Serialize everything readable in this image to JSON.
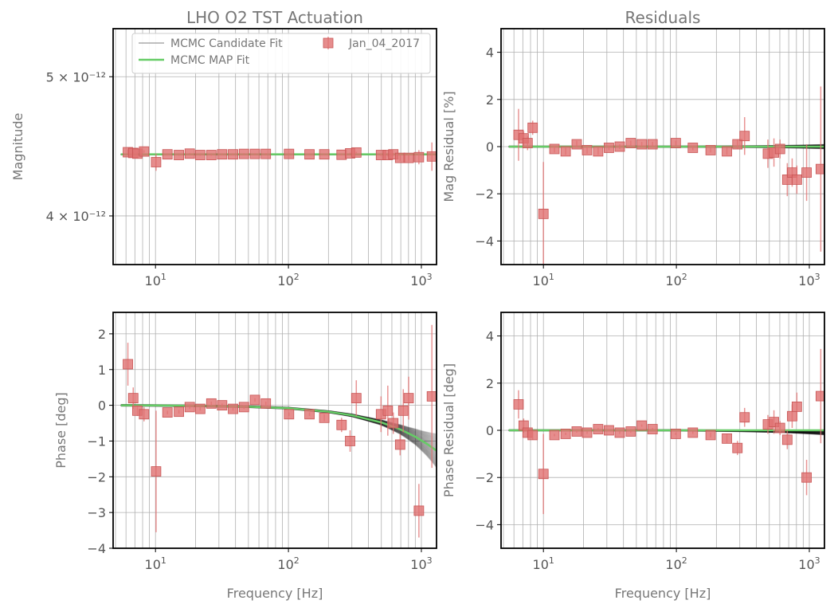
{
  "colors": {
    "data": "#e07070",
    "data_edge": "#c85555",
    "map_fit": "#66cc66",
    "candidate": "#000000",
    "grid": "#b0b0b0",
    "text": "#777777"
  },
  "chart_data": [
    {
      "id": "mag",
      "type": "scatter",
      "title": "LHO O2 TST Actuation",
      "xlabel": "",
      "ylabel": "Magnitude",
      "xscale": "log",
      "yscale": "log",
      "xlim": [
        4.8,
        1300
      ],
      "ylim": [
        3.7e-12,
        5.4e-12
      ],
      "yticks": [
        {
          "value": 4e-12,
          "label": "4 × 10⁻¹²"
        },
        {
          "value": 5e-12,
          "label": "5 × 10⁻¹²"
        }
      ],
      "grid": true,
      "legend": {
        "position": "top",
        "entries": [
          {
            "label": "MCMC Candidate Fit",
            "kind": "candidate"
          },
          {
            "label": "MCMC MAP Fit",
            "kind": "map"
          },
          {
            "label": "Jan_04_2017",
            "kind": "data"
          }
        ]
      },
      "x": [
        6.2,
        6.8,
        7.3,
        8.2,
        10.1,
        12.3,
        15,
        18.1,
        21.7,
        26.3,
        31.7,
        38.3,
        46.3,
        56,
        67.6,
        101,
        144,
        186,
        251,
        291,
        324,
        497,
        559,
        615,
        692,
        802,
        958,
        1200
      ],
      "y": [
        4.43e-12,
        4.425e-12,
        4.42e-12,
        4.435e-12,
        4.36e-12,
        4.415e-12,
        4.41e-12,
        4.42e-12,
        4.41e-12,
        4.41e-12,
        4.415e-12,
        4.415e-12,
        4.418e-12,
        4.418e-12,
        4.418e-12,
        4.418e-12,
        4.415e-12,
        4.415e-12,
        4.412e-12,
        4.422e-12,
        4.428e-12,
        4.41e-12,
        4.41e-12,
        4.415e-12,
        4.39e-12,
        4.39e-12,
        4.395e-12,
        4.4e-12
      ],
      "yerr": [
        2e-14,
        1e-14,
        1e-14,
        1e-14,
        6e-14,
        5e-15,
        5e-15,
        5e-15,
        5e-15,
        5e-15,
        5e-15,
        5e-15,
        5e-15,
        5e-15,
        5e-15,
        5e-15,
        5e-15,
        5e-15,
        5e-15,
        5e-15,
        5e-15,
        1e-14,
        1e-14,
        1e-14,
        2e-14,
        2e-14,
        5e-14,
        1e-13
      ],
      "map_fit": {
        "x": [
          5.5,
          1300
        ],
        "y": [
          4.415e-12,
          4.415e-12
        ]
      },
      "candidates": {
        "x": [
          5.5,
          1300
        ],
        "y": [
          4.415e-12,
          4.415e-12
        ]
      }
    },
    {
      "id": "mag_resid",
      "type": "scatter",
      "title": "Residuals",
      "xlabel": "",
      "ylabel": "Mag Residual [%]",
      "xscale": "log",
      "yscale": "linear",
      "xlim": [
        4.8,
        1300
      ],
      "ylim": [
        -5,
        5
      ],
      "yticks": [
        {
          "value": -4,
          "label": "−4"
        },
        {
          "value": -2,
          "label": "−2"
        },
        {
          "value": 0,
          "label": "0"
        },
        {
          "value": 2,
          "label": "2"
        },
        {
          "value": 4,
          "label": "4"
        }
      ],
      "grid": true,
      "x": [
        6.5,
        7.1,
        7.6,
        8.3,
        10.0,
        12.1,
        14.7,
        17.8,
        21.3,
        25.8,
        31.1,
        37.5,
        45.4,
        54.9,
        66.2,
        99,
        133,
        181,
        240,
        288,
        326,
        488,
        542,
        602,
        683,
        743,
        806,
        954,
        1220
      ],
      "y": [
        0.5,
        0.35,
        0.15,
        0.8,
        -2.85,
        -0.1,
        -0.2,
        0.1,
        -0.15,
        -0.2,
        -0.05,
        0.0,
        0.15,
        0.1,
        0.1,
        0.15,
        -0.05,
        -0.15,
        -0.2,
        0.1,
        0.45,
        -0.3,
        -0.25,
        -0.1,
        -1.4,
        -1.1,
        -1.4,
        -1.1,
        -0.95
      ],
      "yerr": [
        1.1,
        0.3,
        0.3,
        0.3,
        2.2,
        0.15,
        0.15,
        0.15,
        0.15,
        0.15,
        0.1,
        0.1,
        0.1,
        0.1,
        0.1,
        0.1,
        0.1,
        0.1,
        0.15,
        0.2,
        0.8,
        0.6,
        0.6,
        0.4,
        0.7,
        0.6,
        0.6,
        1.2,
        3.5
      ],
      "map_fit": {
        "x": [
          5.5,
          1300
        ],
        "y": [
          0,
          0
        ]
      },
      "candidates": {
        "x": [
          5.5,
          1300
        ],
        "y": [
          0,
          0
        ]
      }
    },
    {
      "id": "phase",
      "type": "scatter",
      "title": "",
      "xlabel": "Frequency [Hz]",
      "ylabel": "Phase [deg]",
      "xscale": "log",
      "yscale": "linear",
      "xlim": [
        4.8,
        1300
      ],
      "ylim": [
        -4,
        2.6
      ],
      "yticks": [
        {
          "value": -4,
          "label": "−4"
        },
        {
          "value": -3,
          "label": "−3"
        },
        {
          "value": -2,
          "label": "−2"
        },
        {
          "value": -1,
          "label": "−1"
        },
        {
          "value": 0,
          "label": "0"
        },
        {
          "value": 1,
          "label": "1"
        },
        {
          "value": 2,
          "label": "2"
        }
      ],
      "grid": true,
      "x": [
        6.2,
        6.8,
        7.3,
        8.2,
        10.1,
        12.3,
        15,
        18.1,
        21.7,
        26.3,
        31.7,
        38.3,
        46.3,
        56,
        67.6,
        101,
        144,
        186,
        251,
        291,
        324,
        497,
        559,
        615,
        692,
        731,
        802,
        958,
        1200
      ],
      "y": [
        1.15,
        0.2,
        -0.15,
        -0.25,
        -1.85,
        -0.2,
        -0.18,
        -0.05,
        -0.1,
        0.05,
        0.0,
        -0.1,
        -0.05,
        0.15,
        0.05,
        -0.25,
        -0.25,
        -0.35,
        -0.55,
        -1.0,
        0.2,
        -0.25,
        -0.15,
        -0.5,
        -1.1,
        -0.15,
        0.2,
        -2.95,
        0.25
      ],
      "yerr": [
        0.6,
        0.3,
        0.15,
        0.2,
        1.7,
        0.05,
        0.05,
        0.05,
        0.05,
        0.05,
        0.05,
        0.05,
        0.05,
        0.05,
        0.05,
        0.05,
        0.05,
        0.1,
        0.2,
        0.3,
        0.5,
        0.5,
        0.7,
        0.3,
        0.3,
        0.6,
        0.6,
        0.75,
        2.0
      ],
      "map_fit": {
        "x": [
          5.5,
          10,
          20,
          50,
          100,
          200,
          300,
          500,
          700,
          900,
          1100,
          1300
        ],
        "y": [
          0,
          -0.004,
          -0.015,
          -0.04,
          -0.08,
          -0.18,
          -0.28,
          -0.48,
          -0.68,
          -0.88,
          -1.08,
          -1.27
        ]
      },
      "candidates": {
        "x": [
          5.5,
          10,
          20,
          50,
          100,
          200,
          300,
          500,
          700,
          900,
          1100,
          1300
        ],
        "y": [
          0,
          -0.004,
          -0.015,
          -0.04,
          -0.08,
          -0.18,
          -0.28,
          -0.48,
          -0.68,
          -0.88,
          -1.08,
          -1.27
        ]
      }
    },
    {
      "id": "phase_resid",
      "type": "scatter",
      "title": "",
      "xlabel": "Frequency [Hz]",
      "ylabel": "Phase Residual [deg]",
      "xscale": "log",
      "yscale": "linear",
      "xlim": [
        4.8,
        1300
      ],
      "ylim": [
        -5,
        5
      ],
      "yticks": [
        {
          "value": -4,
          "label": "−4"
        },
        {
          "value": -2,
          "label": "−2"
        },
        {
          "value": 0,
          "label": "0"
        },
        {
          "value": 2,
          "label": "2"
        },
        {
          "value": 4,
          "label": "4"
        }
      ],
      "grid": true,
      "x": [
        6.5,
        7.1,
        7.6,
        8.3,
        10.0,
        12.1,
        14.7,
        17.8,
        21.3,
        25.8,
        31.1,
        37.5,
        45.4,
        54.9,
        66.2,
        99,
        133,
        181,
        240,
        288,
        326,
        488,
        542,
        602,
        683,
        743,
        806,
        954,
        1220
      ],
      "y": [
        1.1,
        0.2,
        -0.1,
        -0.2,
        -1.85,
        -0.2,
        -0.15,
        -0.05,
        -0.1,
        0.05,
        0.0,
        -0.1,
        -0.05,
        0.2,
        0.05,
        -0.15,
        -0.1,
        -0.2,
        -0.35,
        -0.75,
        0.55,
        0.25,
        0.35,
        0.1,
        -0.4,
        0.6,
        1.0,
        -2.0,
        1.45
      ],
      "yerr": [
        0.6,
        0.3,
        0.2,
        0.2,
        1.7,
        0.05,
        0.05,
        0.05,
        0.05,
        0.05,
        0.05,
        0.05,
        0.05,
        0.05,
        0.05,
        0.05,
        0.05,
        0.1,
        0.2,
        0.3,
        0.4,
        0.4,
        0.5,
        0.3,
        0.4,
        0.5,
        0.6,
        0.75,
        2.0
      ],
      "map_fit": {
        "x": [
          5.5,
          1300
        ],
        "y": [
          0,
          0
        ]
      },
      "candidates": {
        "x": [
          5.5,
          100,
          300,
          700,
          1300
        ],
        "y": [
          0,
          0,
          -0.02,
          -0.05,
          -0.1
        ]
      }
    }
  ]
}
